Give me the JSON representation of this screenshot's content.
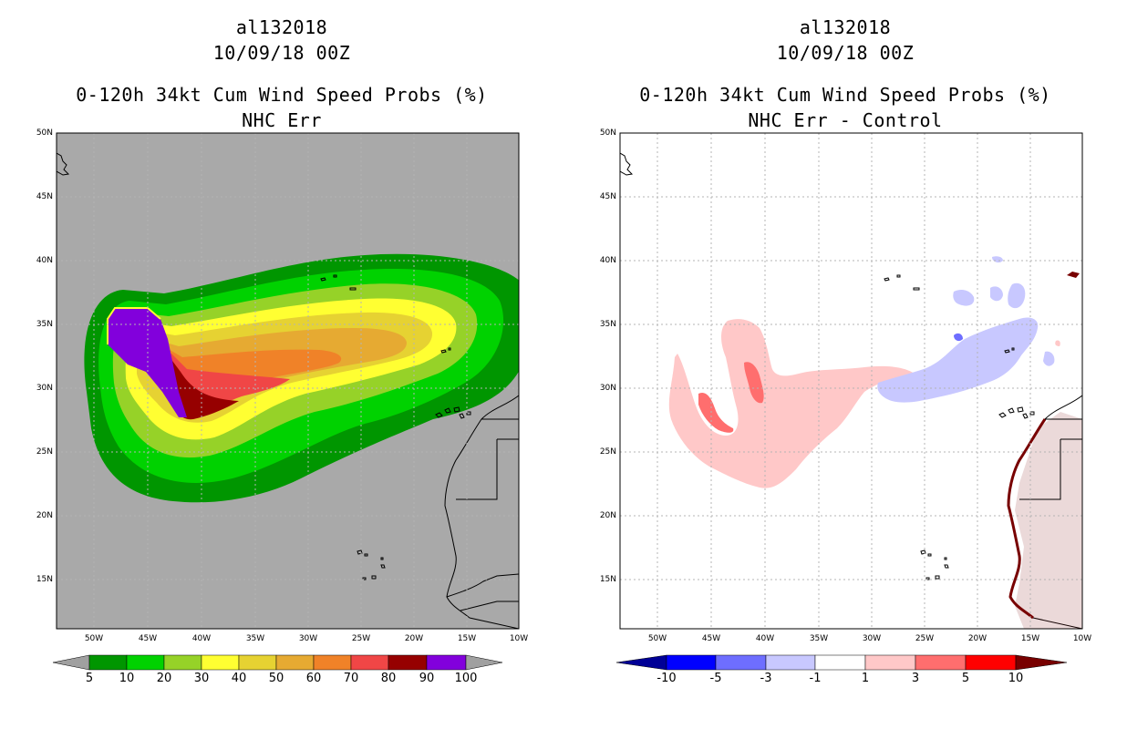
{
  "left_panel": {
    "title_storm": "al132018",
    "title_time": "10/09/18 00Z",
    "title_product": "0-120h 34kt Cum Wind Speed Probs (%)",
    "title_subtitle": "NHC Err",
    "colorbar": {
      "labels": [
        "5",
        "10",
        "20",
        "30",
        "40",
        "50",
        "60",
        "70",
        "80",
        "90",
        "100"
      ],
      "colors": [
        "#009600",
        "#00d200",
        "#96d228",
        "#ffff32",
        "#e6d232",
        "#e6aa32",
        "#f08228",
        "#f04646",
        "#960000",
        "#8200dc"
      ],
      "end_color": "#a0a0a0"
    }
  },
  "right_panel": {
    "title_storm": "al132018",
    "title_time": "10/09/18 00Z",
    "title_product": "0-120h 34kt Cum Wind Speed Probs (%)",
    "title_subtitle": "NHC Err - Control",
    "colorbar": {
      "labels": [
        "-10",
        "-5",
        "-3",
        "-1",
        "1",
        "3",
        "5",
        "10"
      ],
      "colors": [
        "#0000aa",
        "#0000ff",
        "#6e6eff",
        "#c8c8ff",
        "#ffffff",
        "#ffc8c8",
        "#ff6e6e",
        "#ff0000",
        "#aa0000"
      ],
      "end_left": "#000096",
      "end_right": "#780000"
    }
  },
  "axes": {
    "lat_labels": [
      "50N",
      "45N",
      "40N",
      "35N",
      "30N",
      "25N",
      "20N",
      "15N"
    ],
    "lon_labels": [
      "50W",
      "45W",
      "40W",
      "35W",
      "30W",
      "25W",
      "20W",
      "15W",
      "10W"
    ]
  },
  "colors": {
    "ocean_left": "#a9a9a9",
    "grid": "#b4b4b4"
  }
}
